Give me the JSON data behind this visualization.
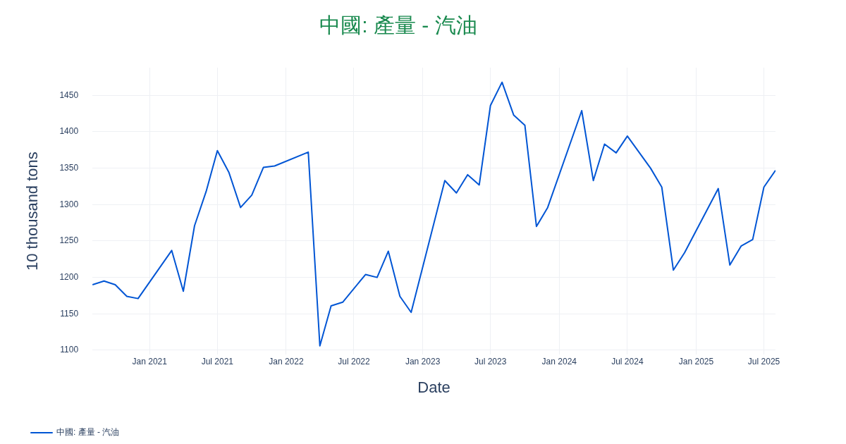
{
  "chart_data": {
    "type": "line",
    "title": "中國: 產量 - 汽油",
    "xlabel": "Date",
    "ylabel": "10 thousand tons",
    "x": [
      "2020-08",
      "2020-09",
      "2020-10",
      "2020-11",
      "2020-12",
      "2021-03",
      "2021-04",
      "2021-05",
      "2021-06",
      "2021-07",
      "2021-08",
      "2021-09",
      "2021-10",
      "2021-11",
      "2021-12",
      "2022-03",
      "2022-04",
      "2022-05",
      "2022-06",
      "2022-08",
      "2022-09",
      "2022-10",
      "2022-11",
      "2022-12",
      "2023-03",
      "2023-04",
      "2023-05",
      "2023-06",
      "2023-07",
      "2023-08",
      "2023-09",
      "2023-10",
      "2023-11",
      "2023-12",
      "2024-03",
      "2024-04",
      "2024-05",
      "2024-06",
      "2024-07",
      "2024-09",
      "2024-10",
      "2024-11",
      "2024-12",
      "2025-03",
      "2025-04",
      "2025-05",
      "2025-06",
      "2025-07",
      "2025-08"
    ],
    "series": [
      {
        "name": "中國: 產量 - 汽油",
        "color": "#0055d4",
        "values": [
          1190,
          1195,
          1190,
          1174,
          1171,
          1237,
          1181,
          1271,
          1318,
          1374,
          1344,
          1296,
          1313,
          1351,
          1353,
          1372,
          1106,
          1161,
          1166,
          1204,
          1200,
          1236,
          1174,
          1152,
          1333,
          1316,
          1341,
          1327,
          1436,
          1468,
          1423,
          1409,
          1270,
          1296,
          1429,
          1333,
          1383,
          1371,
          1394,
          1350,
          1324,
          1210,
          1234,
          1322,
          1217,
          1243,
          1252,
          1324,
          1347
        ]
      }
    ],
    "xlim": [
      "2020-08",
      "2025-08"
    ],
    "xticks": [
      {
        "value": "2021-01",
        "label": "Jan 2021"
      },
      {
        "value": "2021-07",
        "label": "Jul 2021"
      },
      {
        "value": "2022-01",
        "label": "Jan 2022"
      },
      {
        "value": "2022-07",
        "label": "Jul 2022"
      },
      {
        "value": "2023-01",
        "label": "Jan 2023"
      },
      {
        "value": "2023-07",
        "label": "Jul 2023"
      },
      {
        "value": "2024-01",
        "label": "Jan 2024"
      },
      {
        "value": "2024-07",
        "label": "Jul 2024"
      },
      {
        "value": "2025-01",
        "label": "Jan 2025"
      },
      {
        "value": "2025-07",
        "label": "Jul 2025"
      }
    ],
    "ylim": [
      1094,
      1488
    ],
    "yticks": [
      1100,
      1150,
      1200,
      1250,
      1300,
      1350,
      1400,
      1450
    ],
    "grid": true,
    "legend": "bottom left",
    "marker": "none",
    "line_style": "solid"
  }
}
